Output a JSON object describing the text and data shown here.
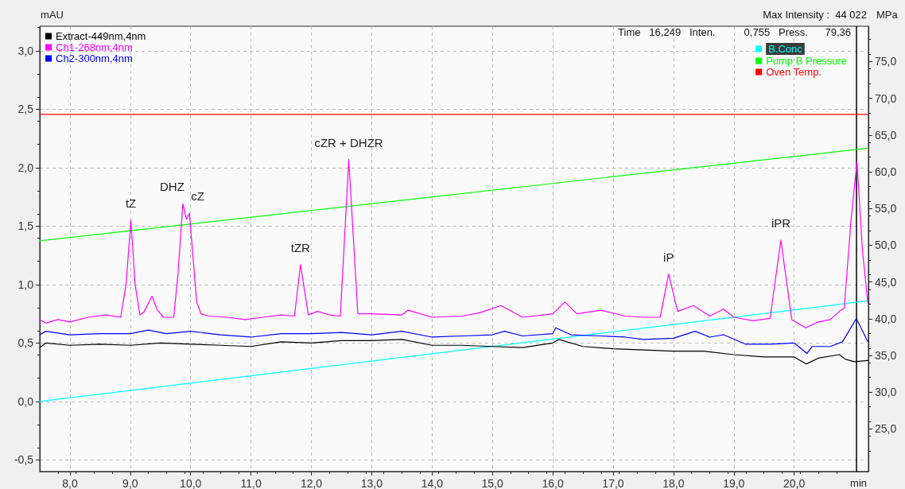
{
  "chart_data": {
    "type": "line",
    "xlabel": "min",
    "ylabel": "mAU",
    "y2label": "MPa",
    "xlim": [
      7.5,
      21.23
    ],
    "ylim": [
      -0.6,
      3.21
    ],
    "y2lim": [
      19.2,
      79.8
    ],
    "xticks": [
      {
        "value": 8,
        "label": "8,0"
      },
      {
        "value": 9,
        "label": "9,0"
      },
      {
        "value": 10,
        "label": "10,0"
      },
      {
        "value": 11,
        "label": "11,0"
      },
      {
        "value": 12,
        "label": "12,0"
      },
      {
        "value": 13,
        "label": "13,0"
      },
      {
        "value": 14,
        "label": "14,0"
      },
      {
        "value": 15,
        "label": "15,0"
      },
      {
        "value": 16,
        "label": "16,0"
      },
      {
        "value": 17,
        "label": "17,0"
      },
      {
        "value": 18,
        "label": "18,0"
      },
      {
        "value": 19,
        "label": "19,0"
      },
      {
        "value": 20,
        "label": "20,0"
      }
    ],
    "yticks": [
      {
        "value": -0.5,
        "label": "-0,5"
      },
      {
        "value": 0,
        "label": "0,0"
      },
      {
        "value": 0.5,
        "label": "0,5"
      },
      {
        "value": 1,
        "label": "1,0"
      },
      {
        "value": 1.5,
        "label": "1,5"
      },
      {
        "value": 2,
        "label": "2,0"
      },
      {
        "value": 2.5,
        "label": "2,5"
      },
      {
        "value": 3,
        "label": "3,0"
      }
    ],
    "y2ticks": [
      {
        "value": 25,
        "label": "25,0"
      },
      {
        "value": 30,
        "label": "30,0"
      },
      {
        "value": 35,
        "label": "35,0"
      },
      {
        "value": 40,
        "label": "40,0"
      },
      {
        "value": 45,
        "label": "45,0"
      },
      {
        "value": 50,
        "label": "50,0"
      },
      {
        "value": 55,
        "label": "55,0"
      },
      {
        "value": 60,
        "label": "60,0"
      },
      {
        "value": 65,
        "label": "65,0"
      },
      {
        "value": 70,
        "label": "70,0"
      },
      {
        "value": 75,
        "label": "75,0"
      }
    ],
    "grid": true,
    "legend": "top",
    "marker": "none",
    "line_style": "solid",
    "series": [
      {
        "name": "Extract-449nm,4nm",
        "color": "#000000",
        "x": [
          7.5,
          7.6,
          8.0,
          8.5,
          9.0,
          9.5,
          10.0,
          10.5,
          11.0,
          11.5,
          12.0,
          12.5,
          13.0,
          13.5,
          14.0,
          14.5,
          15.0,
          15.5,
          16.0,
          16.1,
          16.5,
          17.0,
          17.5,
          18.0,
          18.5,
          19.0,
          19.5,
          20.0,
          20.2,
          20.4,
          20.75,
          20.85,
          21.0,
          21.22
        ],
        "values": [
          0.46,
          0.5,
          0.48,
          0.49,
          0.48,
          0.5,
          0.49,
          0.48,
          0.47,
          0.51,
          0.5,
          0.52,
          0.52,
          0.53,
          0.48,
          0.48,
          0.47,
          0.46,
          0.5,
          0.53,
          0.47,
          0.45,
          0.44,
          0.43,
          0.43,
          0.4,
          0.38,
          0.38,
          0.32,
          0.37,
          0.4,
          0.36,
          0.34,
          0.35
        ]
      },
      {
        "name": "Ch1-268nm,4nm",
        "color": "#ff00ff",
        "x": [
          7.5,
          7.6,
          7.8,
          8.0,
          8.3,
          8.6,
          8.84,
          8.93,
          9.01,
          9.08,
          9.16,
          9.22,
          9.36,
          9.45,
          9.55,
          9.72,
          9.79,
          9.87,
          9.93,
          9.98,
          10.1,
          10.17,
          10.3,
          10.6,
          10.9,
          11.2,
          11.5,
          11.72,
          11.82,
          11.95,
          12.1,
          12.3,
          12.48,
          12.62,
          12.77,
          13.0,
          13.5,
          13.6,
          14.0,
          14.5,
          14.8,
          15.14,
          15.5,
          16.0,
          16.2,
          16.4,
          16.8,
          17.2,
          17.5,
          17.78,
          17.92,
          18.07,
          18.33,
          18.6,
          18.83,
          19.0,
          19.32,
          19.6,
          19.78,
          19.96,
          20.19,
          20.4,
          20.6,
          20.77,
          20.83,
          20.94,
          21.04,
          21.13,
          21.22
        ],
        "values": [
          0.7,
          0.67,
          0.7,
          0.68,
          0.72,
          0.74,
          0.72,
          1.0,
          1.55,
          1.0,
          0.74,
          0.76,
          0.9,
          0.78,
          0.72,
          0.72,
          1.09,
          1.69,
          1.56,
          1.61,
          0.85,
          0.75,
          0.73,
          0.72,
          0.7,
          0.72,
          0.74,
          0.73,
          1.17,
          0.74,
          0.77,
          0.74,
          0.73,
          2.07,
          0.75,
          0.75,
          0.74,
          0.78,
          0.72,
          0.73,
          0.76,
          0.82,
          0.72,
          0.75,
          0.85,
          0.75,
          0.78,
          0.73,
          0.72,
          0.72,
          1.09,
          0.77,
          0.82,
          0.73,
          0.79,
          0.72,
          0.69,
          0.71,
          1.38,
          0.7,
          0.63,
          0.68,
          0.7,
          0.78,
          0.8,
          1.54,
          2.05,
          1.3,
          0.84
        ]
      },
      {
        "name": "Ch2-300nm,4nm",
        "color": "#0000ff",
        "x": [
          7.5,
          7.6,
          8.0,
          8.5,
          9.0,
          9.3,
          9.6,
          10.0,
          10.5,
          11.0,
          11.5,
          12.0,
          12.5,
          13.0,
          13.5,
          14.0,
          14.5,
          15.0,
          15.2,
          15.5,
          16.0,
          16.05,
          16.3,
          16.8,
          17.2,
          17.5,
          18.0,
          18.36,
          18.6,
          18.83,
          19.19,
          19.6,
          20.0,
          20.21,
          20.3,
          20.6,
          20.8,
          21.03,
          21.22
        ],
        "values": [
          0.57,
          0.6,
          0.57,
          0.58,
          0.58,
          0.61,
          0.58,
          0.6,
          0.57,
          0.55,
          0.58,
          0.58,
          0.59,
          0.57,
          0.6,
          0.55,
          0.56,
          0.57,
          0.6,
          0.56,
          0.58,
          0.63,
          0.57,
          0.56,
          0.55,
          0.53,
          0.54,
          0.6,
          0.55,
          0.57,
          0.49,
          0.49,
          0.5,
          0.41,
          0.47,
          0.47,
          0.51,
          0.71,
          0.51
        ]
      },
      {
        "name": "B.Conc",
        "color": "#00ffff",
        "x": [
          7.5,
          21.22
        ],
        "values": [
          0.0,
          0.86
        ]
      },
      {
        "name": "Pump B Pressure",
        "color": "#00ff00",
        "axis": "y2",
        "x": [
          7.5,
          21.22
        ],
        "values": [
          50.6,
          63.2
        ]
      },
      {
        "name": "Oven Temp.",
        "color": "#ff0000",
        "x": [
          7.5,
          21.22
        ],
        "values": [
          2.455,
          2.455
        ]
      }
    ],
    "ref_lines": [
      {
        "axis": "x",
        "value": 21.03,
        "color": "#000000"
      }
    ],
    "annotations": [
      "Max Intensity :  44 022",
      "Time   16,249   Inten.          0,755   Press.      79,36",
      {
        "text": "tZ",
        "x": 9.01,
        "y": 1.55
      },
      {
        "text": "DHZ",
        "x": 9.87,
        "y": 1.69
      },
      {
        "text": "cZ",
        "x": 9.98,
        "y": 1.61
      },
      {
        "text": "tZR",
        "x": 11.82,
        "y": 1.17
      },
      {
        "text": "cZR + DHZR",
        "x": 12.62,
        "y": 2.07
      },
      {
        "text": "iP",
        "x": 17.92,
        "y": 1.09
      },
      {
        "text": "iPR",
        "x": 19.78,
        "y": 1.38
      }
    ]
  }
}
